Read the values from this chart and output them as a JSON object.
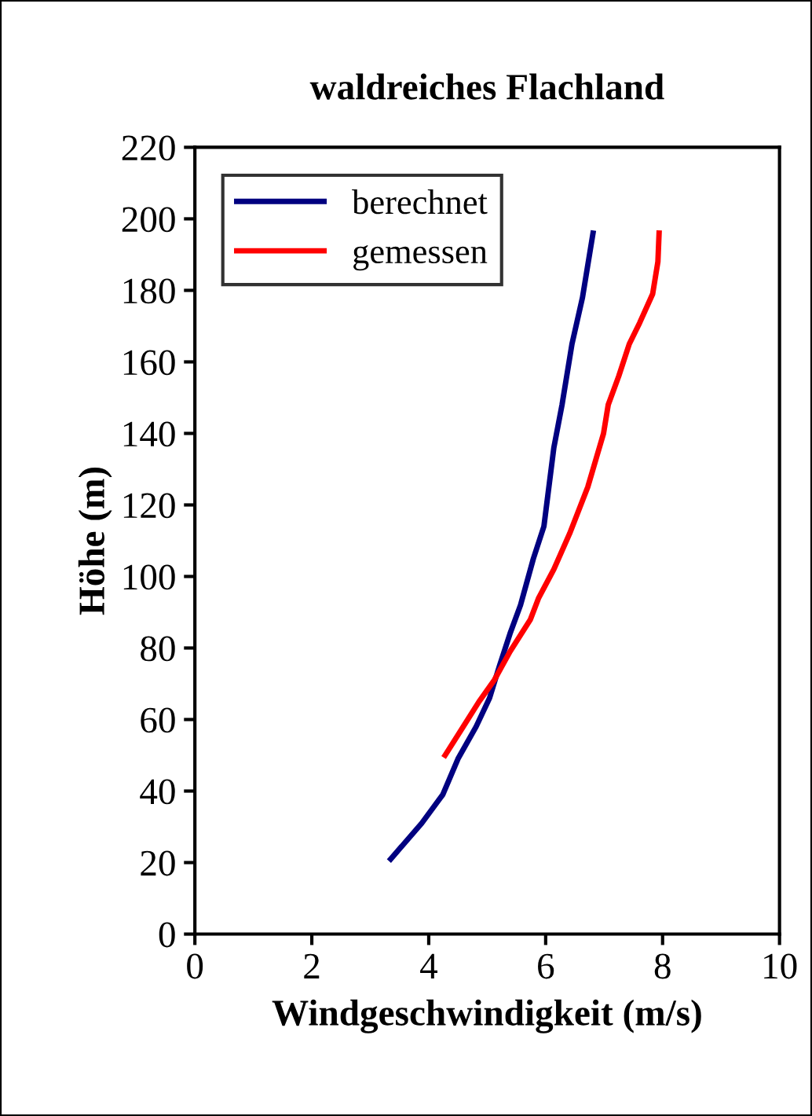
{
  "chart_data": {
    "type": "line",
    "title": "waldreiches Flachland",
    "xlabel": "Windgeschwindigkeit (m/s)",
    "ylabel": "Höhe (m)",
    "xlim": [
      0,
      10
    ],
    "xticks": [
      0,
      2,
      4,
      6,
      8,
      10
    ],
    "ylim": [
      0,
      220
    ],
    "yticks": [
      0,
      20,
      40,
      60,
      80,
      100,
      120,
      140,
      160,
      180,
      200,
      220
    ],
    "grid": false,
    "legend": "top left",
    "marker": "none",
    "line_style": "solid",
    "series": [
      {
        "name": "berechnet",
        "color": "#000080",
        "x": [
          3.35,
          3.88,
          4.24,
          4.5,
          4.81,
          5.04,
          5.21,
          5.39,
          5.57,
          5.79,
          5.97,
          6.14,
          6.28,
          6.45,
          6.63,
          6.81
        ],
        "values": [
          21,
          31,
          39,
          49,
          58,
          66,
          75,
          84,
          92,
          105,
          114,
          136,
          148,
          165,
          178,
          196
        ]
      },
      {
        "name": "gemessen",
        "color": "#ff0000",
        "x": [
          4.28,
          4.59,
          4.86,
          5.12,
          5.39,
          5.74,
          5.88,
          6.14,
          6.41,
          6.72,
          6.99,
          7.07,
          7.25,
          7.43,
          7.61,
          7.83,
          7.92,
          7.94
        ],
        "values": [
          50,
          58,
          65,
          71,
          79,
          88,
          94,
          102,
          112,
          125,
          140,
          148,
          156,
          165,
          171,
          179,
          188,
          196
        ]
      }
    ]
  }
}
